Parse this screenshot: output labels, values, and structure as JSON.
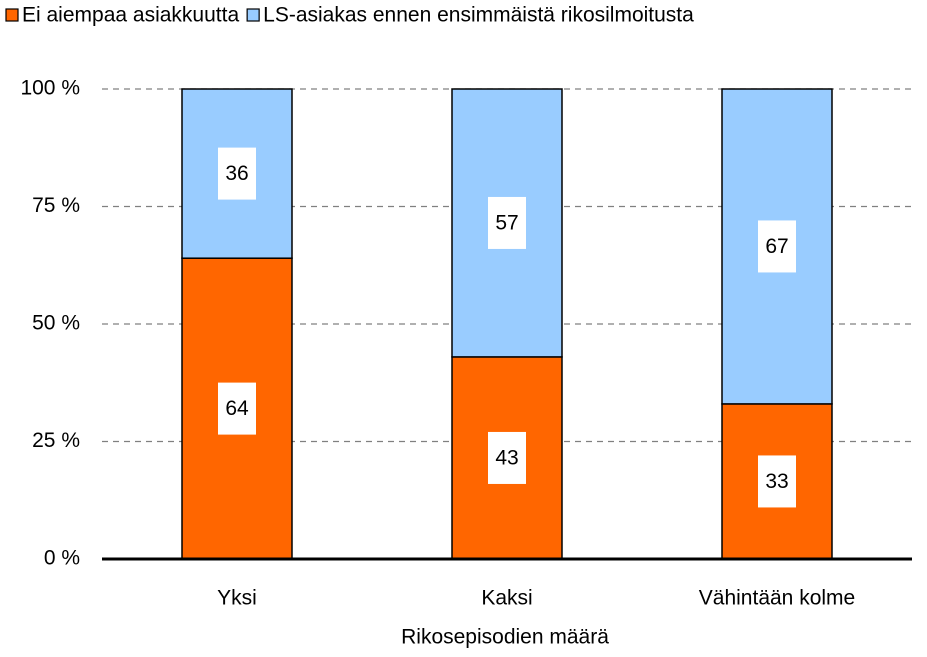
{
  "chart_data": {
    "type": "stacked_bar",
    "x_label": "Rikosepisodien määrä",
    "categories": [
      "Yksi",
      "Kaksi",
      "Vähintään kolme"
    ],
    "series": [
      {
        "name": "Ei aiempaa asiakkuutta",
        "color": "#ff6600",
        "values": [
          64,
          43,
          33
        ]
      },
      {
        "name": "LS-asiakas ennen ensimmäistä rikosilmoitusta",
        "color": "#99ccff",
        "values": [
          36,
          57,
          67
        ]
      }
    ],
    "ylim": [
      0,
      100
    ],
    "yticks": [
      {
        "value": 0,
        "label": "0 %"
      },
      {
        "value": 25,
        "label": "25 %"
      },
      {
        "value": 50,
        "label": "50 %"
      },
      {
        "value": 75,
        "label": "75 %"
      },
      {
        "value": 100,
        "label": "100 %"
      }
    ],
    "grid": true,
    "legend": "top"
  }
}
